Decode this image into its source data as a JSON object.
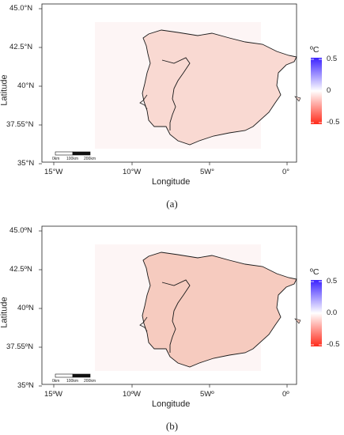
{
  "panels": [
    {
      "caption": "(a)",
      "axis": {
        "xlabel": "Longitude",
        "ylabel": "Latitude",
        "xticks": [
          "15°W",
          "10°W",
          "5W°",
          "0°"
        ],
        "yticks": [
          "45.0°N",
          "42.5°N",
          "40°N",
          "37.55°N",
          "35°N"
        ]
      },
      "legend": {
        "title": "ºC",
        "ticks": [
          "0.5",
          "0",
          "-0.5"
        ],
        "colors": {
          "high": "#3b22ff",
          "mid": "#ffffff",
          "low": "#ff2a1a"
        }
      },
      "scale_bar": {
        "labels": [
          "0km",
          "100km",
          "200km"
        ]
      },
      "field_color": "#f9d9d2"
    },
    {
      "caption": "(b)",
      "axis": {
        "xlabel": "Longitude",
        "ylabel": "Latitude",
        "xticks": [
          "15ºW",
          "10ºW",
          "5Wº",
          "0º"
        ],
        "yticks": [
          "45.0ºN",
          "42.5ºN",
          "40ºN",
          "37.55ºN",
          "35ºN"
        ]
      },
      "legend": {
        "title": "ºC",
        "ticks": [
          "0.5",
          "0.0",
          "-0.5"
        ],
        "colors": {
          "high": "#3b22ff",
          "mid": "#ffffff",
          "low": "#ff2a1a"
        }
      },
      "scale_bar": {
        "labels": [
          "0km",
          "100km",
          "200km"
        ]
      },
      "field_color": "#f6cbbf"
    }
  ]
}
